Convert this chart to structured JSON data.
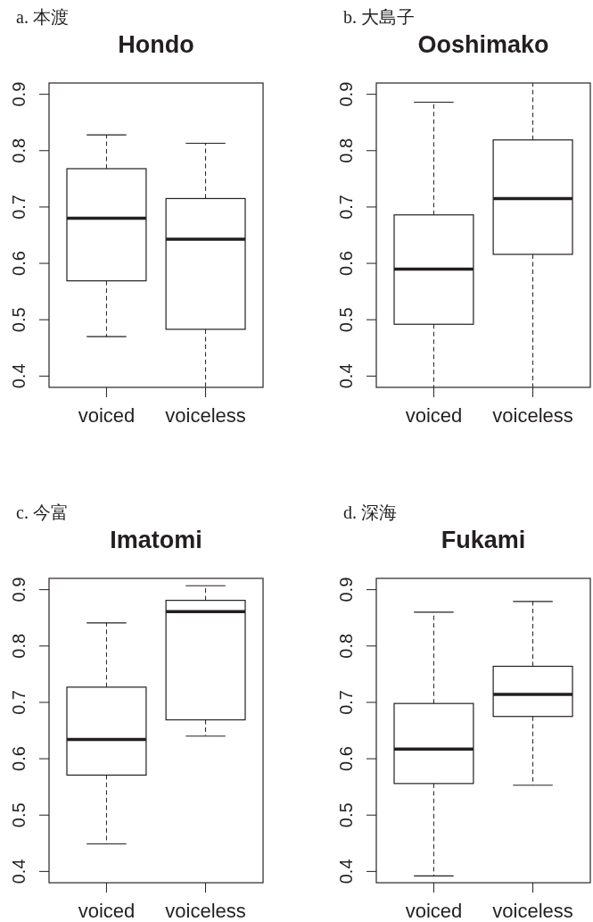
{
  "chart_data": [
    {
      "type": "box",
      "title": "Hondo",
      "annotations": [
        "a. 本渡"
      ],
      "categories": [
        "voiced",
        "voiceless"
      ],
      "boxes": [
        {
          "low": 0.47,
          "q1": 0.569,
          "median": 0.68,
          "q3": 0.768,
          "high": 0.828
        },
        {
          "low": 0.38,
          "q1": 0.483,
          "median": 0.643,
          "q3": 0.715,
          "high": 0.813
        }
      ],
      "ylim": [
        0.38,
        0.92
      ],
      "yticks": [
        0.4,
        0.5,
        0.6,
        0.7,
        0.8,
        0.9
      ]
    },
    {
      "type": "box",
      "title": "Ooshimako",
      "annotations": [
        "b. 大島子"
      ],
      "categories": [
        "voiced",
        "voiceless"
      ],
      "boxes": [
        {
          "low": 0.38,
          "q1": 0.492,
          "median": 0.59,
          "q3": 0.686,
          "high": 0.886
        },
        {
          "low": 0.38,
          "q1": 0.616,
          "median": 0.715,
          "q3": 0.819,
          "high": 0.92
        }
      ],
      "ylim": [
        0.38,
        0.92
      ],
      "yticks": [
        0.4,
        0.5,
        0.6,
        0.7,
        0.8,
        0.9
      ]
    },
    {
      "type": "box",
      "title": "Imatomi",
      "annotations": [
        "c. 今富"
      ],
      "categories": [
        "voiced",
        "voiceless"
      ],
      "boxes": [
        {
          "low": 0.449,
          "q1": 0.571,
          "median": 0.634,
          "q3": 0.727,
          "high": 0.841
        },
        {
          "low": 0.64,
          "q1": 0.669,
          "median": 0.861,
          "q3": 0.881,
          "high": 0.907
        }
      ],
      "ylim": [
        0.38,
        0.92
      ],
      "yticks": [
        0.4,
        0.5,
        0.6,
        0.7,
        0.8,
        0.9
      ]
    },
    {
      "type": "box",
      "title": "Fukami",
      "annotations": [
        "d. 深海"
      ],
      "categories": [
        "voiced",
        "voiceless"
      ],
      "boxes": [
        {
          "low": 0.392,
          "q1": 0.556,
          "median": 0.617,
          "q3": 0.698,
          "high": 0.86
        },
        {
          "low": 0.553,
          "q1": 0.675,
          "median": 0.714,
          "q3": 0.764,
          "high": 0.879
        }
      ],
      "ylim": [
        0.38,
        0.92
      ],
      "yticks": [
        0.4,
        0.5,
        0.6,
        0.7,
        0.8,
        0.9
      ]
    }
  ]
}
